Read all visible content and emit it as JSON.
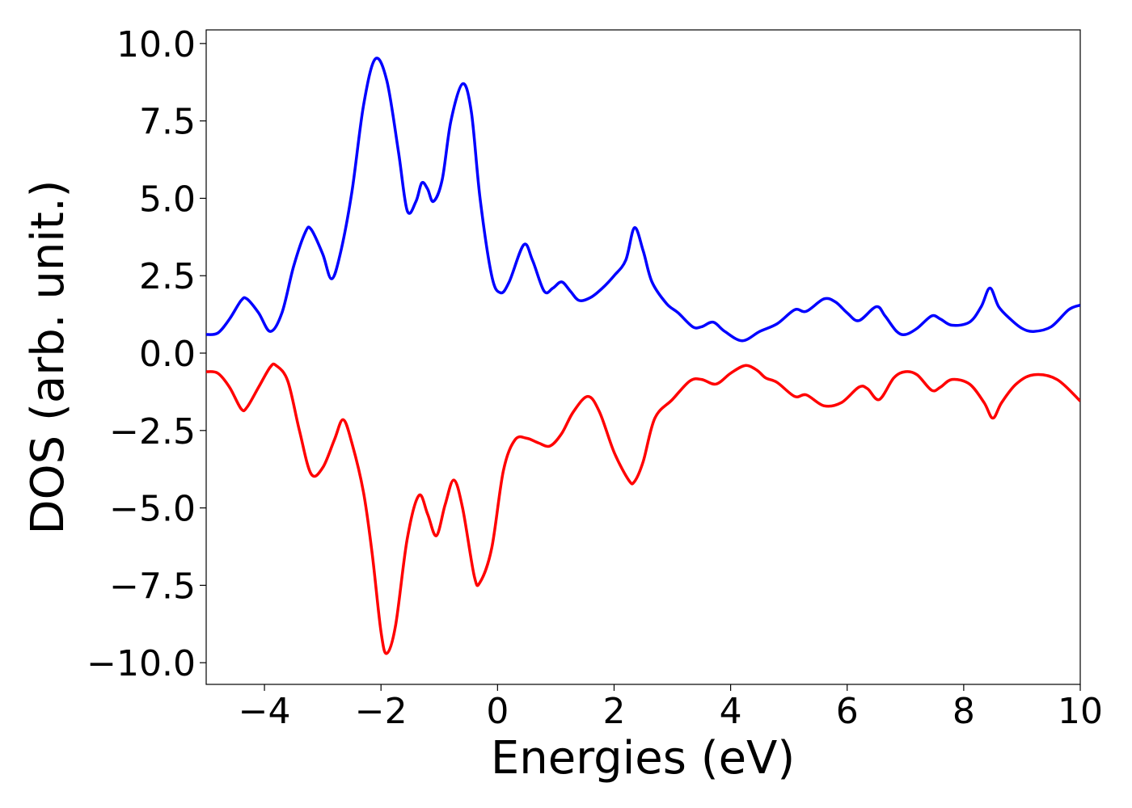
{
  "chart_data": {
    "type": "line",
    "xlabel": "Energies (eV)",
    "ylabel": "DOS (arb. unit.)",
    "xlim": [
      -5,
      10
    ],
    "ylim": [
      -10.7,
      10.44
    ],
    "xticks": [
      {
        "value": -4,
        "label": "−4"
      },
      {
        "value": -2,
        "label": "−2"
      },
      0,
      2,
      4,
      6,
      8,
      10
    ],
    "yticks": [
      {
        "value": -10,
        "label": "−10.0"
      },
      {
        "value": -7.5,
        "label": "−7.5"
      },
      {
        "value": -5,
        "label": "−5.0"
      },
      {
        "value": -2.5,
        "label": "−2.5"
      },
      {
        "value": 0,
        "label": "0.0"
      },
      {
        "value": 2.5,
        "label": "2.5"
      },
      {
        "value": 5,
        "label": "5.0"
      },
      {
        "value": 7.5,
        "label": "7.5"
      },
      {
        "value": 10,
        "label": "10.0"
      }
    ],
    "grid": false,
    "series": [
      {
        "color": "#0000ff",
        "x": [
          -5,
          -4.8,
          -4.6,
          -4.4,
          -4.3,
          -4.1,
          -3.9,
          -3.7,
          -3.5,
          -3.3,
          -3.2,
          -3.0,
          -2.85,
          -2.7,
          -2.5,
          -2.3,
          -2.1,
          -1.9,
          -1.7,
          -1.55,
          -1.4,
          -1.3,
          -1.2,
          -1.1,
          -0.95,
          -0.8,
          -0.6,
          -0.45,
          -0.3,
          -0.1,
          0.05,
          0.2,
          0.45,
          0.6,
          0.8,
          0.95,
          1.1,
          1.25,
          1.4,
          1.6,
          1.8,
          2.0,
          2.2,
          2.35,
          2.5,
          2.65,
          2.9,
          3.1,
          3.35,
          3.5,
          3.7,
          3.9,
          4.2,
          4.5,
          4.8,
          5.1,
          5.3,
          5.6,
          5.8,
          6.0,
          6.2,
          6.5,
          6.65,
          6.85,
          7.0,
          7.2,
          7.45,
          7.6,
          7.8,
          8.1,
          8.3,
          8.45,
          8.6,
          8.8,
          9.0,
          9.2,
          9.5,
          9.8,
          10
        ],
        "values": [
          0.6,
          0.65,
          1.1,
          1.7,
          1.75,
          1.3,
          0.7,
          1.3,
          2.8,
          3.9,
          4.0,
          3.2,
          2.4,
          3.2,
          5.2,
          8.0,
          9.5,
          8.8,
          6.5,
          4.6,
          4.9,
          5.5,
          5.3,
          4.9,
          5.6,
          7.5,
          8.7,
          7.8,
          5.0,
          2.5,
          1.95,
          2.3,
          3.5,
          3.0,
          2.0,
          2.1,
          2.3,
          2.0,
          1.7,
          1.8,
          2.1,
          2.5,
          3.0,
          4.05,
          3.3,
          2.3,
          1.6,
          1.3,
          0.85,
          0.85,
          1.0,
          0.7,
          0.4,
          0.7,
          0.95,
          1.4,
          1.35,
          1.75,
          1.65,
          1.3,
          1.05,
          1.5,
          1.2,
          0.7,
          0.6,
          0.8,
          1.2,
          1.1,
          0.9,
          1.0,
          1.5,
          2.1,
          1.5,
          1.1,
          0.8,
          0.7,
          0.85,
          1.4,
          1.55
        ]
      },
      {
        "color": "#ff0000",
        "x": [
          -5,
          -4.8,
          -4.6,
          -4.4,
          -4.3,
          -4.1,
          -3.9,
          -3.8,
          -3.6,
          -3.4,
          -3.2,
          -3.0,
          -2.8,
          -2.65,
          -2.5,
          -2.3,
          -2.15,
          -2.0,
          -1.9,
          -1.75,
          -1.55,
          -1.35,
          -1.2,
          -1.05,
          -0.9,
          -0.75,
          -0.6,
          -0.4,
          -0.3,
          -0.1,
          0.1,
          0.3,
          0.5,
          0.7,
          0.9,
          1.1,
          1.3,
          1.55,
          1.75,
          2.0,
          2.25,
          2.35,
          2.5,
          2.7,
          3.0,
          3.3,
          3.5,
          3.75,
          4.0,
          4.25,
          4.45,
          4.6,
          4.8,
          5.1,
          5.3,
          5.6,
          5.9,
          6.2,
          6.35,
          6.55,
          6.8,
          7.0,
          7.2,
          7.45,
          7.6,
          7.8,
          8.1,
          8.35,
          8.5,
          8.65,
          8.9,
          9.2,
          9.6,
          10
        ],
        "values": [
          -0.6,
          -0.65,
          -1.1,
          -1.8,
          -1.75,
          -1.1,
          -0.45,
          -0.4,
          -0.9,
          -2.5,
          -3.9,
          -3.7,
          -2.8,
          -2.15,
          -2.9,
          -4.5,
          -6.5,
          -9.0,
          -9.7,
          -8.8,
          -6.0,
          -4.6,
          -5.2,
          -5.9,
          -4.9,
          -4.1,
          -5.0,
          -7.2,
          -7.4,
          -6.3,
          -3.8,
          -2.8,
          -2.75,
          -2.9,
          -3.0,
          -2.6,
          -1.9,
          -1.4,
          -1.9,
          -3.2,
          -4.1,
          -4.15,
          -3.5,
          -2.1,
          -1.5,
          -0.9,
          -0.85,
          -1.0,
          -0.65,
          -0.4,
          -0.55,
          -0.8,
          -0.95,
          -1.4,
          -1.35,
          -1.7,
          -1.6,
          -1.1,
          -1.15,
          -1.5,
          -0.8,
          -0.6,
          -0.7,
          -1.2,
          -1.1,
          -0.85,
          -1.0,
          -1.6,
          -2.1,
          -1.6,
          -1.0,
          -0.7,
          -0.85,
          -1.55
        ]
      }
    ]
  }
}
